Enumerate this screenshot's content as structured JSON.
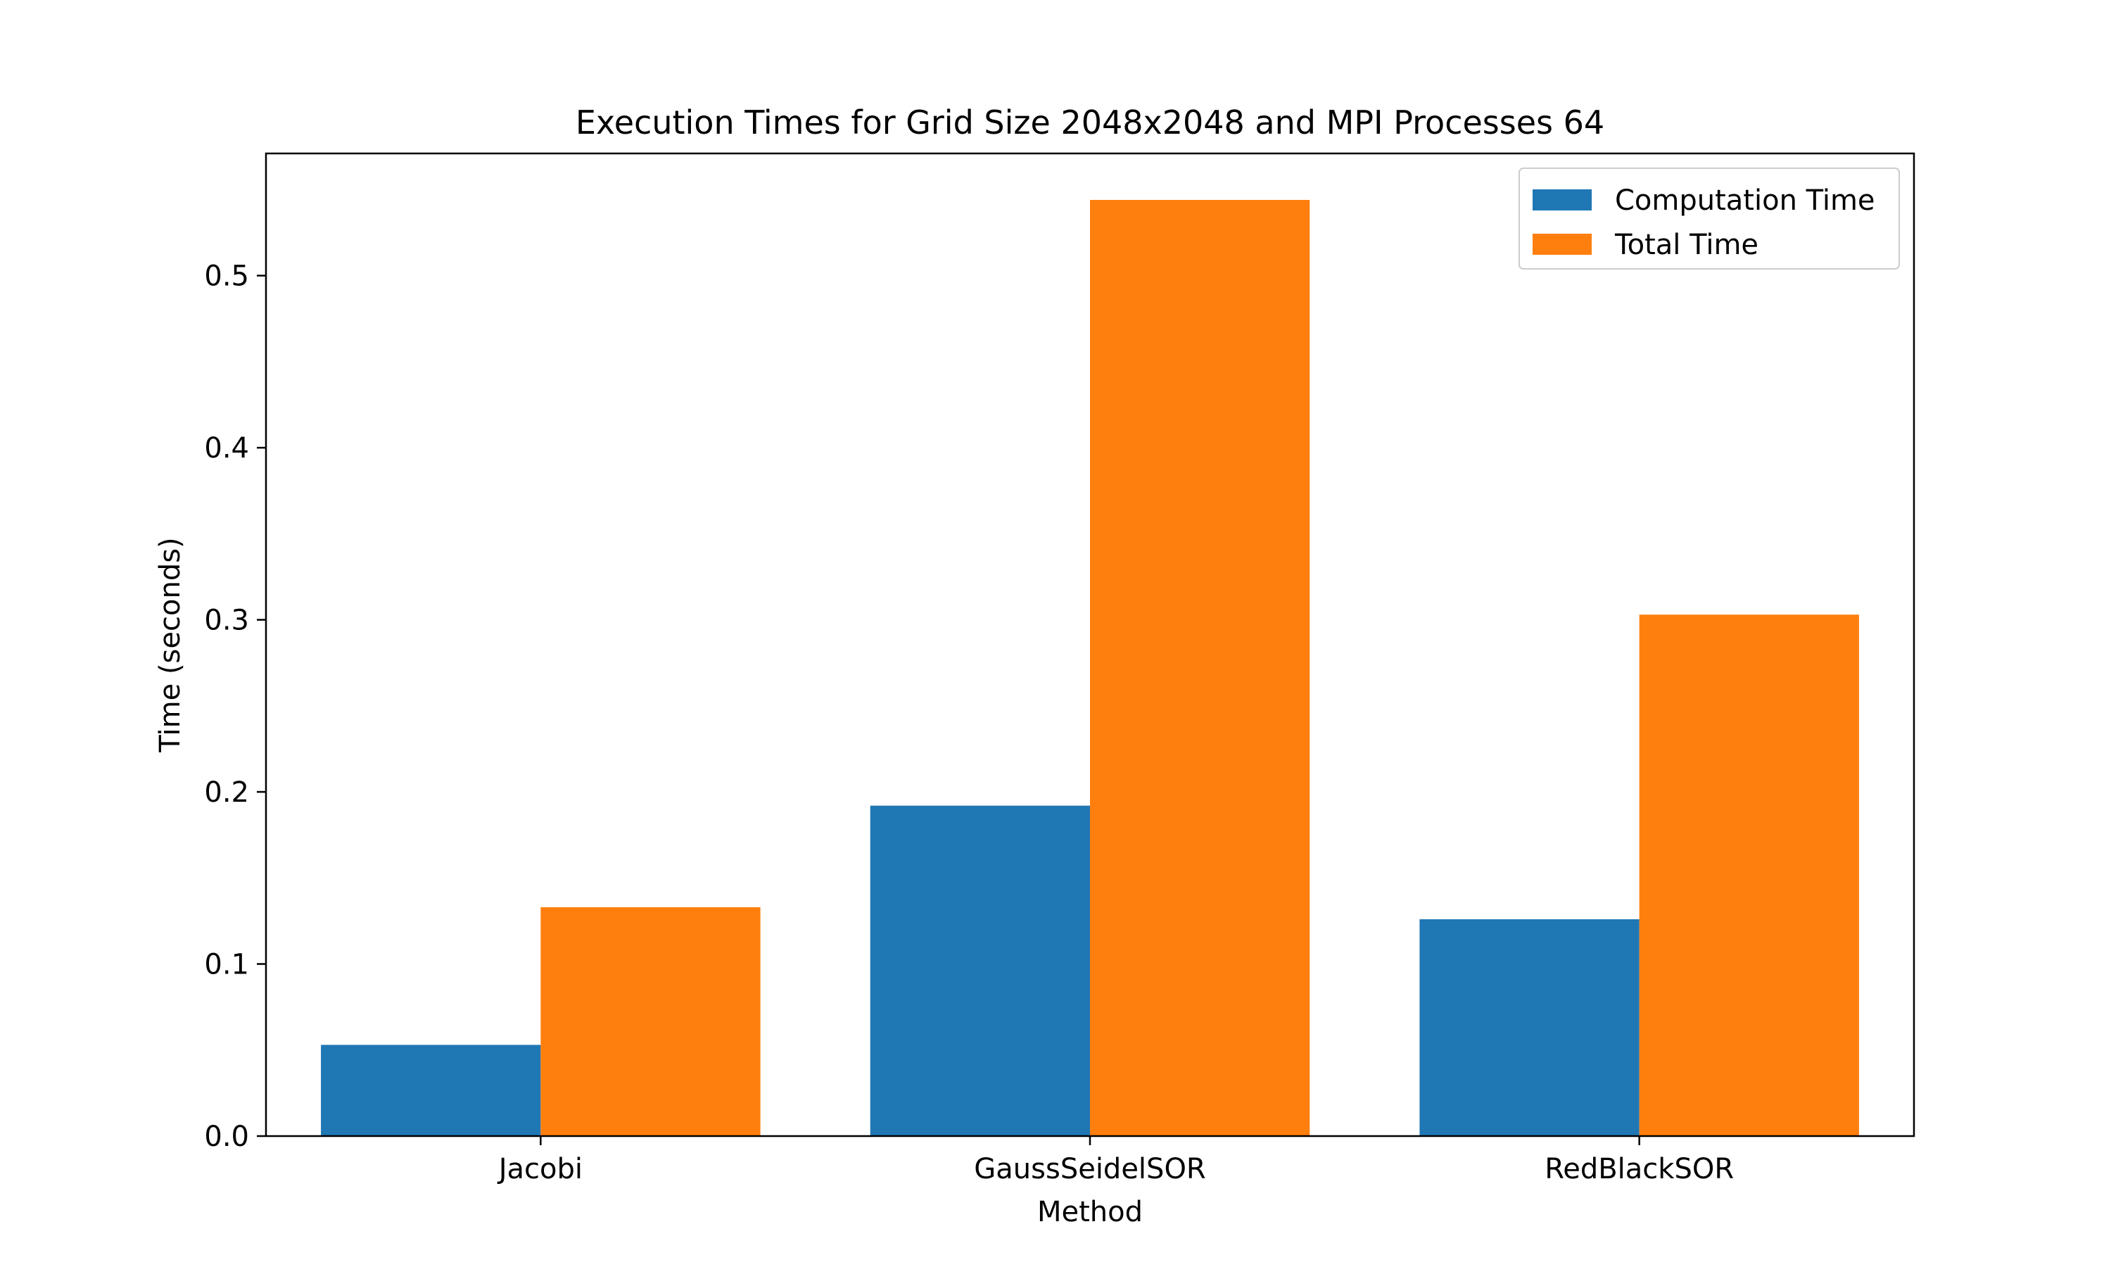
{
  "chart_data": {
    "type": "bar",
    "title": "Execution Times for Grid Size 2048x2048 and MPI Processes 64",
    "xlabel": "Method",
    "ylabel": "Time (seconds)",
    "categories": [
      "Jacobi",
      "GaussSeidelSOR",
      "RedBlackSOR"
    ],
    "series": [
      {
        "name": "Computation Time",
        "values": [
          0.053,
          0.192,
          0.126
        ],
        "color": "#1f77b4"
      },
      {
        "name": "Total Time",
        "values": [
          0.133,
          0.544,
          0.303
        ],
        "color": "#ff7f0e"
      }
    ],
    "ylim": [
      0,
      0.571
    ],
    "yticks": [
      "0.0",
      "0.1",
      "0.2",
      "0.3",
      "0.4",
      "0.5"
    ],
    "grid": false,
    "legend_position": "top-right"
  }
}
